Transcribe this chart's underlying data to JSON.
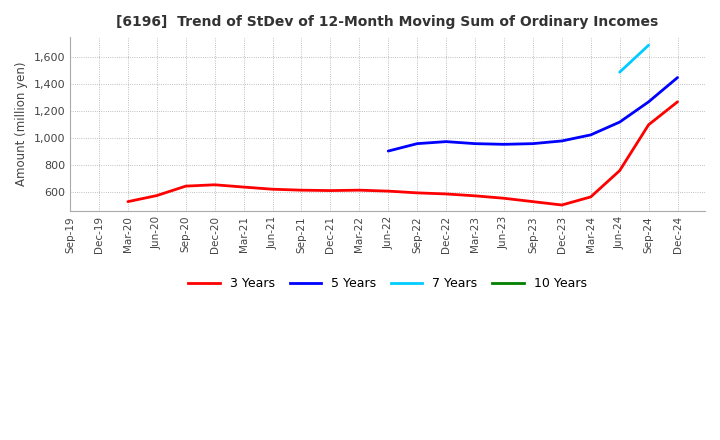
{
  "title": "[6196]  Trend of StDev of 12-Month Moving Sum of Ordinary Incomes",
  "ylabel": "Amount (million yen)",
  "ylim": [
    460,
    1750
  ],
  "yticks": [
    600,
    800,
    1000,
    1200,
    1400,
    1600
  ],
  "background_color": "#ffffff",
  "grid_color": "#aaaaaa",
  "xtick_labels": [
    "Sep-19",
    "Dec-19",
    "Mar-20",
    "Jun-20",
    "Sep-20",
    "Dec-20",
    "Mar-21",
    "Jun-21",
    "Sep-21",
    "Dec-21",
    "Mar-22",
    "Jun-22",
    "Sep-22",
    "Dec-22",
    "Mar-23",
    "Jun-23",
    "Sep-23",
    "Dec-23",
    "Mar-24",
    "Jun-24",
    "Sep-24",
    "Dec-24"
  ],
  "y_3yr": [
    null,
    null,
    530,
    575,
    645,
    655,
    638,
    622,
    615,
    612,
    615,
    608,
    595,
    587,
    573,
    555,
    530,
    505,
    565,
    760,
    1100,
    1270
  ],
  "y_5yr": [
    null,
    null,
    null,
    null,
    null,
    null,
    null,
    null,
    null,
    null,
    null,
    905,
    960,
    975,
    960,
    955,
    960,
    980,
    1025,
    1120,
    1270,
    1450
  ],
  "y_7yr": [
    null,
    null,
    null,
    null,
    null,
    null,
    null,
    null,
    null,
    null,
    null,
    null,
    null,
    null,
    null,
    null,
    null,
    null,
    null,
    1490,
    1690,
    null
  ],
  "y_10yr": [
    null,
    null,
    null,
    null,
    null,
    null,
    null,
    null,
    null,
    null,
    null,
    null,
    null,
    null,
    null,
    null,
    null,
    null,
    null,
    null,
    null,
    null
  ],
  "legend_entries": [
    "3 Years",
    "5 Years",
    "7 Years",
    "10 Years"
  ],
  "legend_colors": [
    "#ff0000",
    "#0000ff",
    "#00ccff",
    "#008000"
  ]
}
